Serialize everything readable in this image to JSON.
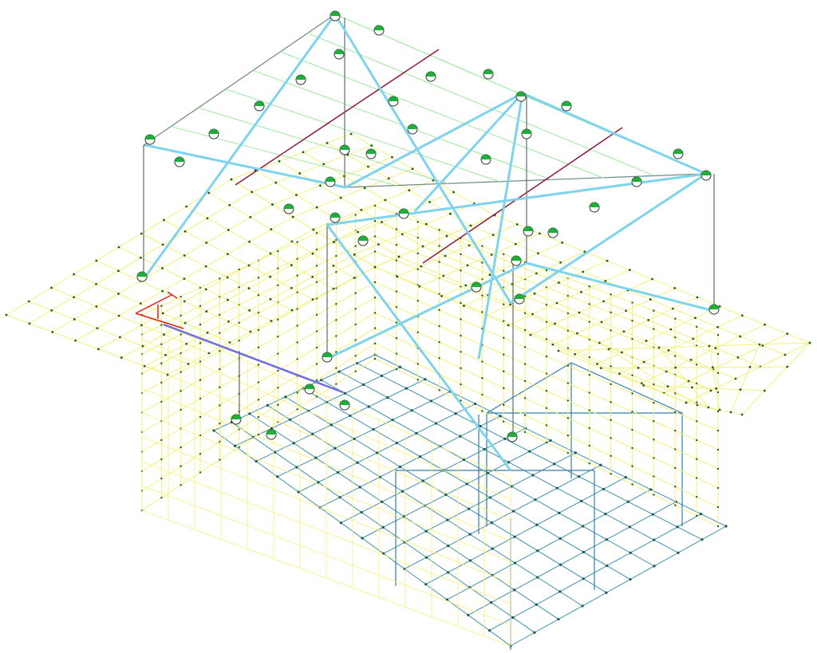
{
  "view": {
    "type": "3d-structural-wireframe",
    "background": "#ffffff",
    "colors": {
      "slab_mesh": "#f5f07a",
      "slab_mesh_dark": "#e6dc3c",
      "pit_mesh": "#3f8fb4",
      "roof_frame": "#6f8a80",
      "roof_purlins": "#9fe89f",
      "bracing": "#7fd3ec",
      "ridge_beam": "#8c1a3a",
      "column": "#5f6f6a",
      "node": "#1f5a3a",
      "support_green": "#1fae3a",
      "support_white": "#ffffff",
      "axis_red": "#e02020",
      "highlight_beam": "#6f6fe0",
      "box_frame": "#2f7fa8"
    }
  }
}
